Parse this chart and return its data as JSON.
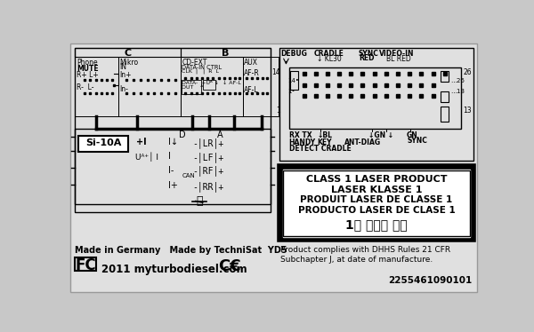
{
  "bg_color": "#c8c8c8",
  "label_bg": "#e8e8e8",
  "bottom_text_left": "Made in Germany   Made by TechniSat  YD5",
  "bottom_text_url": "2011 myturbodiesel.com",
  "bottom_serial": "2255461090101",
  "laser_lines": [
    "CLASS 1 LASER PRODUCT",
    "LASER KLASSE 1",
    "PRODUIT LASER DE CLASSE 1",
    "PRODUCTO LASER DE CLASE 1",
    "1급 레이저 제품"
  ],
  "product_comply": "Product complies with DHHS Rules 21 CFR\nSubchapter J, at date of manufacture."
}
